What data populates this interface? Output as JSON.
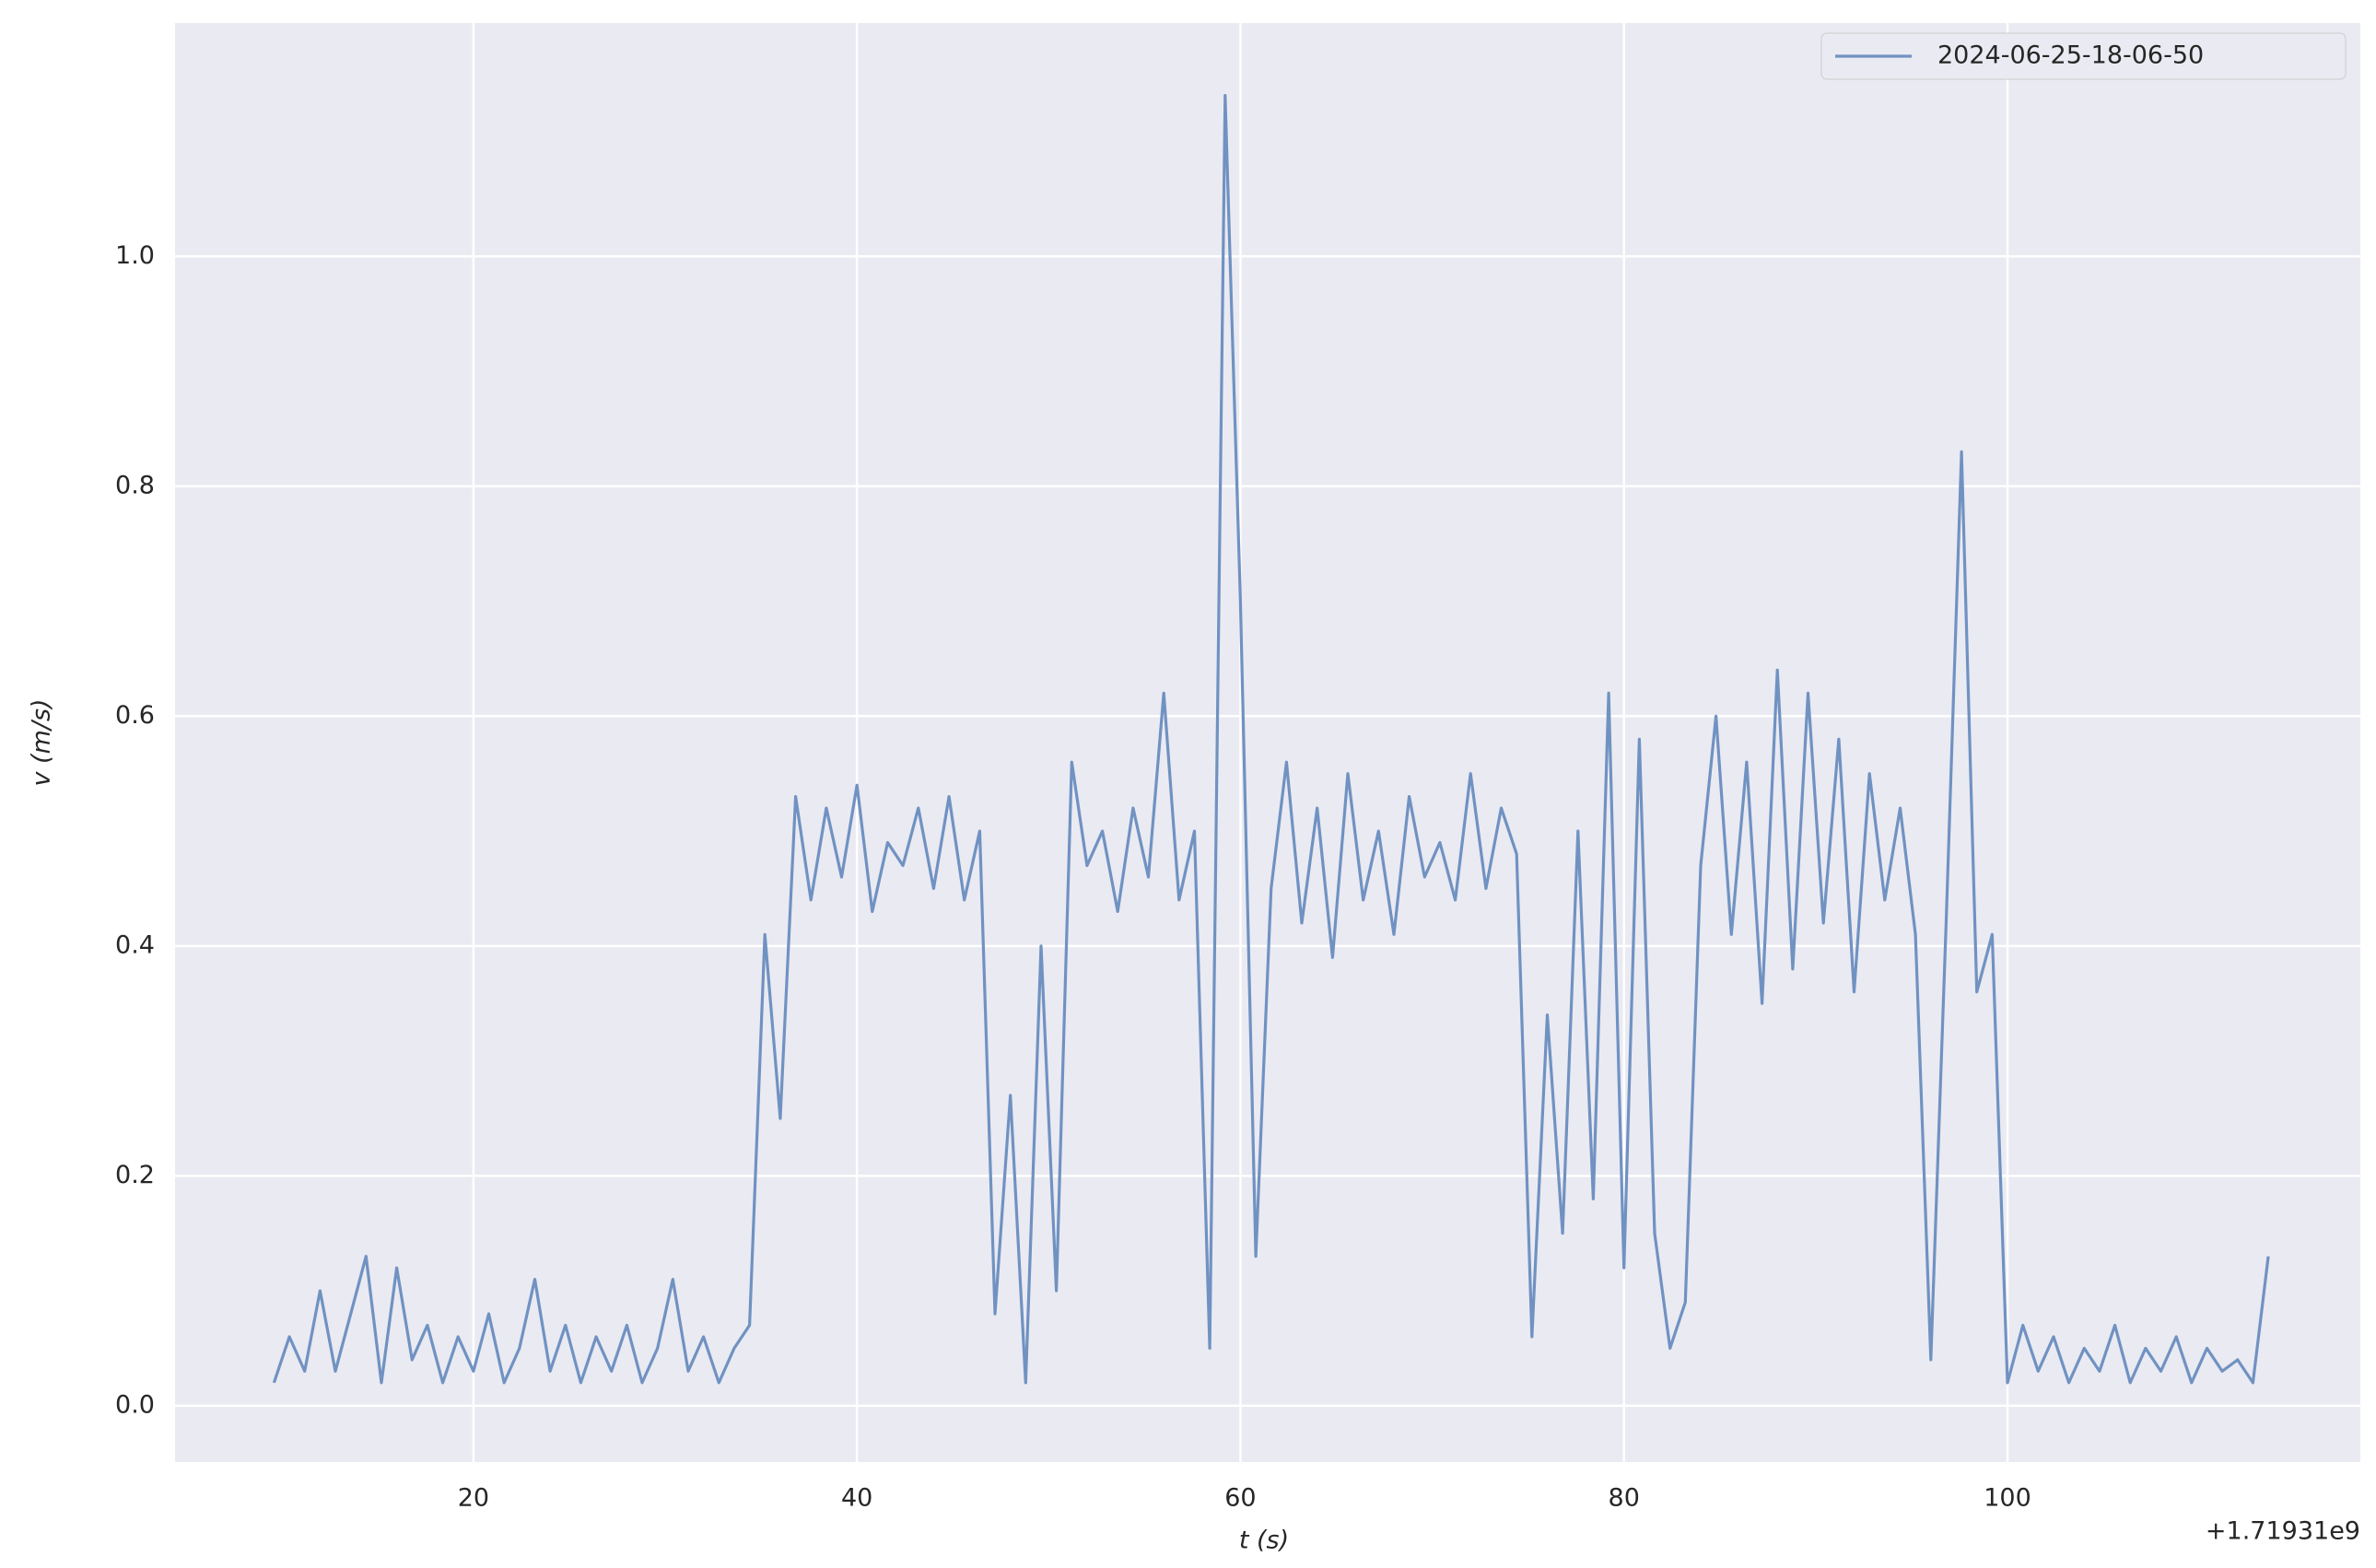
{
  "chart_data": {
    "type": "line",
    "xlabel": "t (s)",
    "ylabel": "v (m/s)",
    "x_offset_label": "+1.71931e9",
    "xlim": [
      4.44,
      118.4
    ],
    "ylim": [
      -0.049,
      1.203
    ],
    "xticks": [
      20,
      40,
      60,
      80,
      100
    ],
    "yticks": [
      {
        "value": 0,
        "label": "0.0"
      },
      0.2,
      0.4,
      0.6,
      0.8,
      {
        "value": 1,
        "label": "1.0"
      }
    ],
    "grid": true,
    "legend": "upper right",
    "x": [
      9.6,
      10.4,
      11.2,
      12,
      12.8,
      13.6,
      14.4,
      15.2,
      16,
      16.8,
      17.6,
      18.4,
      19.2,
      20,
      20.8,
      21.6,
      22.4,
      23.2,
      24,
      24.8,
      25.6,
      26.4,
      27.2,
      28,
      28.8,
      29.6,
      30.4,
      31.2,
      32,
      32.8,
      33.6,
      34.4,
      35.2,
      36,
      36.8,
      37.6,
      38.4,
      39.2,
      40,
      40.8,
      41.6,
      42.4,
      43.2,
      44,
      44.8,
      45.6,
      46.4,
      47.2,
      48,
      48.8,
      49.6,
      50.4,
      51.2,
      52,
      52.8,
      53.6,
      54.4,
      55.2,
      56,
      56.8,
      57.6,
      58.4,
      59.2,
      60,
      60.8,
      61.6,
      62.4,
      63.2,
      64,
      64.8,
      65.6,
      66.4,
      67.2,
      68,
      68.8,
      69.6,
      70.4,
      71.2,
      72,
      72.8,
      73.6,
      74.4,
      75.2,
      76,
      76.8,
      77.6,
      78.4,
      79.2,
      80,
      80.8,
      81.6,
      82.4,
      83.2,
      84,
      84.8,
      85.6,
      86.4,
      87.2,
      88,
      88.8,
      89.6,
      90.4,
      91.2,
      92,
      92.8,
      93.6,
      94.4,
      95.2,
      96,
      96.8,
      97.6,
      98.4,
      99.2,
      100,
      100.8,
      101.6,
      102.4,
      103.2,
      104,
      104.8,
      105.6,
      106.4,
      107.2,
      108,
      108.8,
      109.6,
      110.4,
      111.2,
      112,
      112.8,
      113.6
    ],
    "series": [
      {
        "name": "2024-06-25-18-06-50",
        "color": "#7092c2",
        "values": [
          0.02,
          0.06,
          0.03,
          0.1,
          0.03,
          0.08,
          0.13,
          0.02,
          0.12,
          0.04,
          0.07,
          0.02,
          0.06,
          0.03,
          0.08,
          0.02,
          0.05,
          0.11,
          0.03,
          0.07,
          0.02,
          0.06,
          0.03,
          0.07,
          0.02,
          0.05,
          0.11,
          0.03,
          0.06,
          0.02,
          0.05,
          0.07,
          0.41,
          0.25,
          0.53,
          0.44,
          0.52,
          0.46,
          0.54,
          0.43,
          0.49,
          0.47,
          0.52,
          0.45,
          0.53,
          0.44,
          0.5,
          0.08,
          0.27,
          0.02,
          0.4,
          0.1,
          0.56,
          0.47,
          0.5,
          0.43,
          0.52,
          0.46,
          0.62,
          0.44,
          0.5,
          0.05,
          1.14,
          0.7,
          0.13,
          0.45,
          0.56,
          0.42,
          0.52,
          0.39,
          0.55,
          0.44,
          0.5,
          0.41,
          0.53,
          0.46,
          0.49,
          0.44,
          0.55,
          0.45,
          0.52,
          0.48,
          0.06,
          0.34,
          0.15,
          0.5,
          0.18,
          0.62,
          0.12,
          0.58,
          0.15,
          0.05,
          0.09,
          0.47,
          0.6,
          0.41,
          0.56,
          0.35,
          0.64,
          0.38,
          0.62,
          0.42,
          0.58,
          0.36,
          0.55,
          0.44,
          0.52,
          0.41,
          0.04,
          0.42,
          0.83,
          0.36,
          0.41,
          0.02,
          0.07,
          0.03,
          0.06,
          0.02,
          0.05,
          0.03,
          0.07,
          0.02,
          0.05,
          0.03,
          0.06,
          0.02,
          0.05,
          0.03,
          0.04,
          0.02,
          0.13
        ]
      }
    ]
  }
}
